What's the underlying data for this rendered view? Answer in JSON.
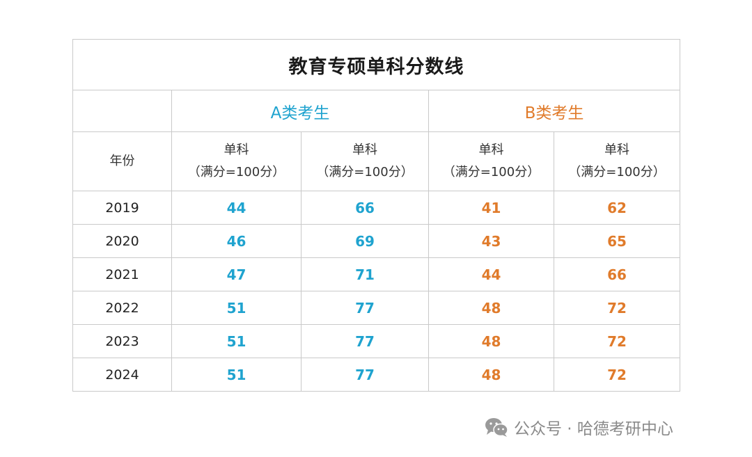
{
  "table": {
    "title": "教育专硕单科分数线",
    "group_a": "A类考生",
    "group_b": "B类考生",
    "year_header": "年份",
    "sub_headers": [
      {
        "line1": "单科",
        "line2": "（满分=100分）"
      },
      {
        "line1": "单科",
        "line2": "（满分=100分）"
      },
      {
        "line1": "单科",
        "line2": "（满分=100分）"
      },
      {
        "line1": "单科",
        "line2": "（满分=100分）"
      }
    ],
    "rows": [
      {
        "year": "2019",
        "a1": "44",
        "a2": "66",
        "b1": "41",
        "b2": "62"
      },
      {
        "year": "2020",
        "a1": "46",
        "a2": "69",
        "b1": "43",
        "b2": "65"
      },
      {
        "year": "2021",
        "a1": "47",
        "a2": "71",
        "b1": "44",
        "b2": "66"
      },
      {
        "year": "2022",
        "a1": "51",
        "a2": "77",
        "b1": "48",
        "b2": "72"
      },
      {
        "year": "2023",
        "a1": "51",
        "a2": "77",
        "b1": "48",
        "b2": "72"
      },
      {
        "year": "2024",
        "a1": "51",
        "a2": "77",
        "b1": "48",
        "b2": "72"
      }
    ]
  },
  "footer": {
    "icon": "wechat-icon",
    "text": "公众号 · 哈德考研中心"
  },
  "colors": {
    "group_a": "#1fa3cf",
    "group_b": "#e07b2b",
    "border": "#c9c9c9"
  }
}
